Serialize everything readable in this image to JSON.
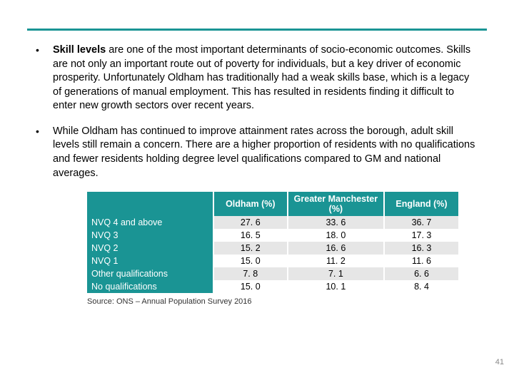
{
  "colors": {
    "accent": "#1a9494",
    "header_bg": "#1a9494",
    "header_fg": "#ffffff",
    "row_odd_bg": "#e6e6e6",
    "row_even_bg": "#ffffff",
    "rowlabel_bg": "#1a9494",
    "rowlabel_fg": "#ffffff",
    "text": "#000000"
  },
  "bullets": [
    {
      "bold_prefix": "Skill levels ",
      "rest": "are one of the most important determinants of socio-economic outcomes. Skills are not only an important route out of poverty for individuals, but a key driver of economic prosperity. Unfortunately Oldham has traditionally had a weak skills base, which is a legacy of generations of manual employment. This has resulted in residents finding it difficult to enter new growth sectors over recent years."
    },
    {
      "bold_prefix": "",
      "rest": "While Oldham has continued to improve attainment rates across the borough, adult skill levels still remain a concern. There are a higher proportion of residents with no qualifications and fewer residents holding degree level qualifications compared to GM and national averages."
    }
  ],
  "table": {
    "col_widths": [
      "34%",
      "20%",
      "26%",
      "20%"
    ],
    "columns": [
      "",
      "Oldham (%)",
      "Greater Manchester (%)",
      "England (%)"
    ],
    "rows": [
      {
        "label": "NVQ 4 and above",
        "values": [
          "27. 6",
          "33. 6",
          "36. 7"
        ]
      },
      {
        "label": "NVQ 3",
        "values": [
          "16. 5",
          "18. 0",
          "17. 3"
        ]
      },
      {
        "label": "NVQ 2",
        "values": [
          "15. 2",
          "16. 6",
          "16. 3"
        ]
      },
      {
        "label": "NVQ 1",
        "values": [
          "15. 0",
          "11. 2",
          "11. 6"
        ]
      },
      {
        "label": "Other qualifications",
        "values": [
          "7. 8",
          "7. 1",
          "6. 6"
        ]
      },
      {
        "label": "No qualifications",
        "values": [
          "15. 0",
          "10. 1",
          "8. 4"
        ]
      }
    ]
  },
  "source_text": "Source: ONS – Annual Population Survey 2016",
  "page_number": "41"
}
